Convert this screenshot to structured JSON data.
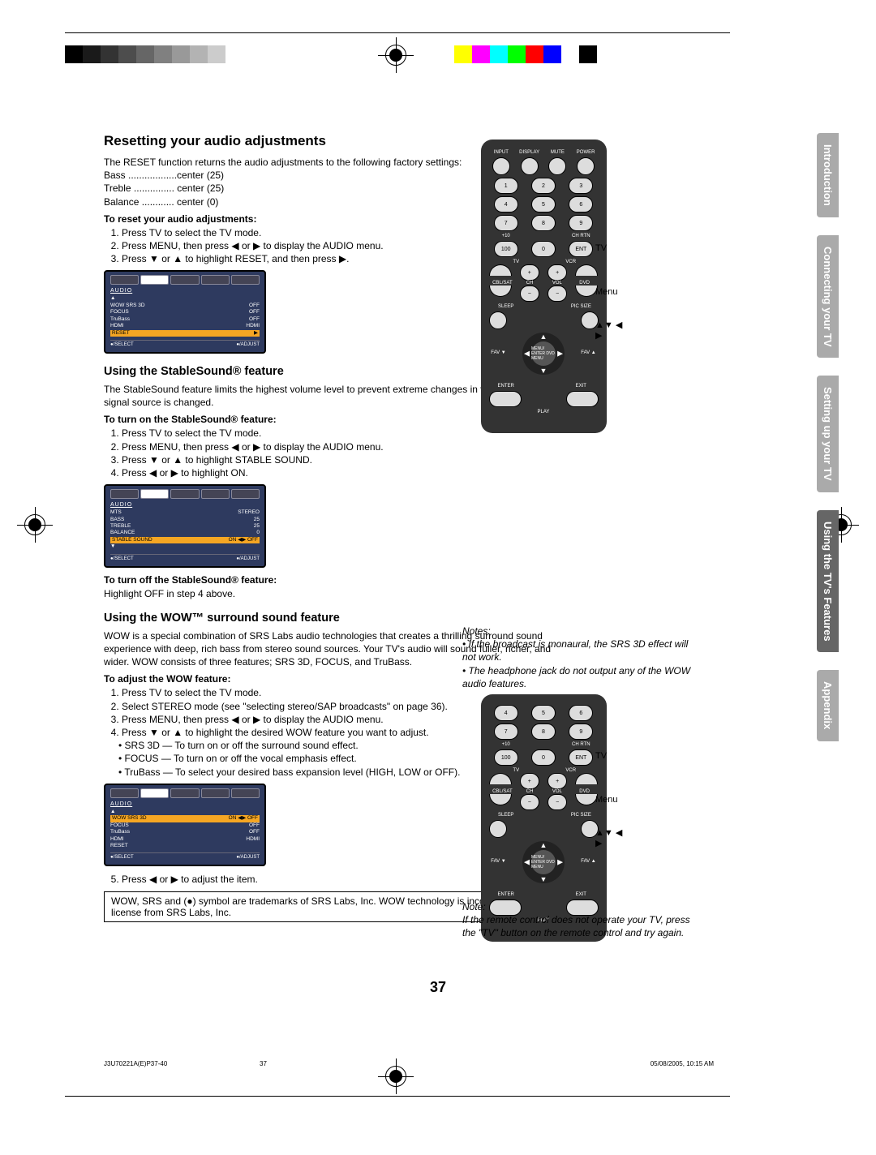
{
  "print_marks": {
    "grayscale": [
      "#000000",
      "#1a1a1a",
      "#333333",
      "#4d4d4d",
      "#666666",
      "#808080",
      "#999999",
      "#b3b3b3",
      "#cccccc",
      "#ffffff"
    ],
    "colors": [
      "#ffff00",
      "#ff00ff",
      "#00ffff",
      "#00ff00",
      "#ff0000",
      "#0000ff",
      "#ffffff",
      "#000000"
    ]
  },
  "h_reset": "Resetting your audio adjustments",
  "reset_intro": "The RESET function returns the audio adjustments to the following factory settings:",
  "reset_defaults": {
    "bass": "Bass ..................center (25)",
    "treble": "Treble ............... center (25)",
    "balance": "Balance ............ center (0)"
  },
  "reset_steps_h": "To reset your audio adjustments:",
  "reset_steps": [
    "Press TV to select the TV mode.",
    "Press MENU, then press ◀ or ▶ to display the AUDIO menu.",
    "Press ▼ or ▲ to highlight RESET, and then press ▶."
  ],
  "menu1": {
    "title": "AUDIO",
    "rows": [
      [
        "▲",
        ""
      ],
      [
        "WOW SRS 3D",
        "OFF"
      ],
      [
        "FOCUS",
        "OFF"
      ],
      [
        "TruBass",
        "OFF"
      ],
      [
        "HDMI",
        "HDMI"
      ]
    ],
    "hl": [
      "RESET",
      "▶"
    ],
    "footer_l": "●/SELECT",
    "footer_r": "●/ADJUST"
  },
  "h_stable": "Using the StableSound® feature",
  "stable_intro": "The StableSound feature limits the highest volume level to prevent extreme changes in volume when the signal source is changed.",
  "stable_on_h": "To turn on the StableSound® feature:",
  "stable_steps": [
    "Press TV to select the TV mode.",
    "Press MENU, then press ◀ or ▶ to display the AUDIO menu.",
    "Press ▼ or ▲ to highlight STABLE SOUND.",
    "Press ◀ or ▶ to highlight ON."
  ],
  "menu2": {
    "title": "AUDIO",
    "rows": [
      [
        "MTS",
        "STEREO"
      ],
      [
        "BASS",
        "25"
      ],
      [
        "TREBLE",
        "25"
      ],
      [
        "BALANCE",
        "0"
      ]
    ],
    "hl": [
      "STABLE SOUND",
      "ON ◀▶ OFF"
    ],
    "extra": [
      "▼",
      ""
    ],
    "footer_l": "●/SELECT",
    "footer_r": "●/ADJUST"
  },
  "stable_off_h": "To turn off the StableSound® feature:",
  "stable_off_p": "Highlight OFF in step 4 above.",
  "h_wow": "Using the WOW™ surround sound feature",
  "wow_intro": "WOW is a special combination of SRS Labs audio technologies that creates a thrilling surround sound experience with deep, rich bass from stereo sound sources. Your TV's audio will sound fuller, richer, and wider. WOW consists of three features; SRS 3D, FOCUS, and TruBass.",
  "wow_adjust_h": "To adjust the WOW feature:",
  "wow_steps": [
    "Press TV to select the TV mode.",
    "Select STEREO mode (see \"selecting stereo/SAP broadcasts\" on page 36).",
    "Press MENU, then press ◀ or ▶ to display the AUDIO menu.",
    "Press ▼ or ▲ to highlight the desired WOW feature you want to adjust."
  ],
  "wow_sub": [
    "SRS 3D — To turn on or off the surround sound effect.",
    "FOCUS — To turn on or off the vocal emphasis effect.",
    "TruBass — To select your desired bass expansion level (HIGH, LOW or OFF)."
  ],
  "menu3": {
    "title": "AUDIO",
    "rows": [
      [
        "▲",
        ""
      ]
    ],
    "hl": [
      "WOW SRS 3D",
      "ON ◀▶ OFF"
    ],
    "rows2": [
      [
        "FOCUS",
        "OFF"
      ],
      [
        "TruBass",
        "OFF"
      ],
      [
        "HDMI",
        "HDMI"
      ],
      [
        "RESET",
        ""
      ]
    ],
    "footer_l": "●/SELECT",
    "footer_r": "●/ADJUST"
  },
  "wow_step5": "Press ◀ or ▶ to adjust the item.",
  "trademark": "WOW, SRS and (●) symbol are trademarks of SRS Labs, Inc. WOW technology is incorporated under license from SRS Labs, Inc.",
  "remote": {
    "top_labels": [
      "INPUT",
      "DISPLAY",
      "MUTE",
      "POWER"
    ],
    "num": [
      "1",
      "2",
      "3",
      "4",
      "5",
      "6",
      "7",
      "8",
      "9"
    ],
    "row4_labels": [
      "+10",
      "",
      "CH RTN"
    ],
    "row4": [
      "100",
      "0",
      "ENT"
    ],
    "dev": [
      "TV",
      "VCR",
      "CBL/SAT",
      "DVD"
    ],
    "ch": "CH",
    "vol": "VOL",
    "sleep": "SLEEP",
    "picsize": "PIC SIZE",
    "favL": "FAV ▼",
    "favR": "FAV ▲",
    "center": "MENU/ ENTER DVD MENU",
    "enter": "ENTER",
    "exit": "EXIT",
    "play": "PLAY",
    "labels": {
      "tv": "TV",
      "menu": "Menu",
      "arrows": "▲▼ ◀ ▶"
    }
  },
  "notes_h": "Notes:",
  "notes": [
    "If the broadcast is monaural, the SRS 3D effect will not work.",
    "The headphone jack do not output any of the WOW audio features."
  ],
  "note2_h": "Note:",
  "note2": "If the remote control does not operate your TV, press the \"TV\" button on the remote control and try again.",
  "side_tabs": [
    "Introduction",
    "Connecting your TV",
    "Setting up your TV",
    "Using the TV's Features",
    "Appendix"
  ],
  "side_active": 3,
  "page_num": "37",
  "footer": {
    "l": "J3U70221A(E)P37-40",
    "m": "37",
    "r": "05/08/2005, 10:15 AM"
  }
}
